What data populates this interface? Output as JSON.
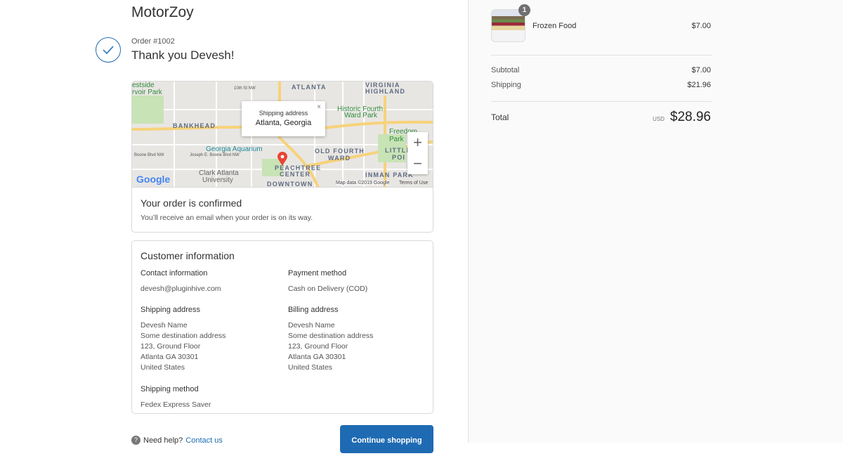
{
  "brand": "MotorZoy",
  "order_number": "Order #1002",
  "thank_you": "Thank you Devesh!",
  "map": {
    "popup_title": "Shipping address",
    "popup_location": "Atlanta, Georgia",
    "labels": [
      "ATLANTA",
      "VIRGINIA",
      "HIGHLAND",
      "BANKHEAD",
      "OLD FOURTH",
      "WARD",
      "PEACHTREE",
      "CENTER",
      "DOWNTOWN",
      "INMAN PARK",
      "LITTLE",
      "POI"
    ],
    "green_labels": [
      "estside",
      "rvoir Park",
      "Historic Fourth",
      "Ward Park",
      "Freedom Park",
      "Georgia Aquarium",
      "Clark Atlanta",
      "University"
    ],
    "small_labels": [
      "10th St NW",
      "Boone Blvd NW",
      "Joseph E. Boone Blvd NW"
    ],
    "logo": "Google",
    "attribution": "Map data ©2019 Google",
    "terms": "Terms of Use"
  },
  "confirmed": {
    "title": "Your order is confirmed",
    "text": "You’ll receive an email when your order is on its way."
  },
  "customer": {
    "title": "Customer information",
    "contact_label": "Contact information",
    "contact": "devesh@pluginhive.com",
    "payment_label": "Payment method",
    "payment": "Cash on Delivery (COD)",
    "shipping_label": "Shipping address",
    "shipping": [
      "Devesh Name",
      "Some destination address",
      "123, Ground Floor",
      "Atlanta GA 30301",
      "United States"
    ],
    "billing_label": "Billing address",
    "billing": [
      "Devesh Name",
      "Some destination address",
      "123, Ground Floor",
      "Atlanta GA 30301",
      "United States"
    ],
    "method_label": "Shipping method",
    "method": "Fedex Express Saver"
  },
  "footer": {
    "help": "Need help?",
    "contact": "Contact us",
    "continue": "Continue shopping"
  },
  "summary": {
    "item": {
      "name": "Frozen Food",
      "price": "$7.00",
      "quantity": "1"
    },
    "subtotal_label": "Subtotal",
    "subtotal": "$7.00",
    "shipping_label": "Shipping",
    "shipping": "$21.96",
    "total_label": "Total",
    "currency": "USD",
    "total": "$28.96"
  },
  "colors": {
    "accent": "#1f6bb3"
  }
}
